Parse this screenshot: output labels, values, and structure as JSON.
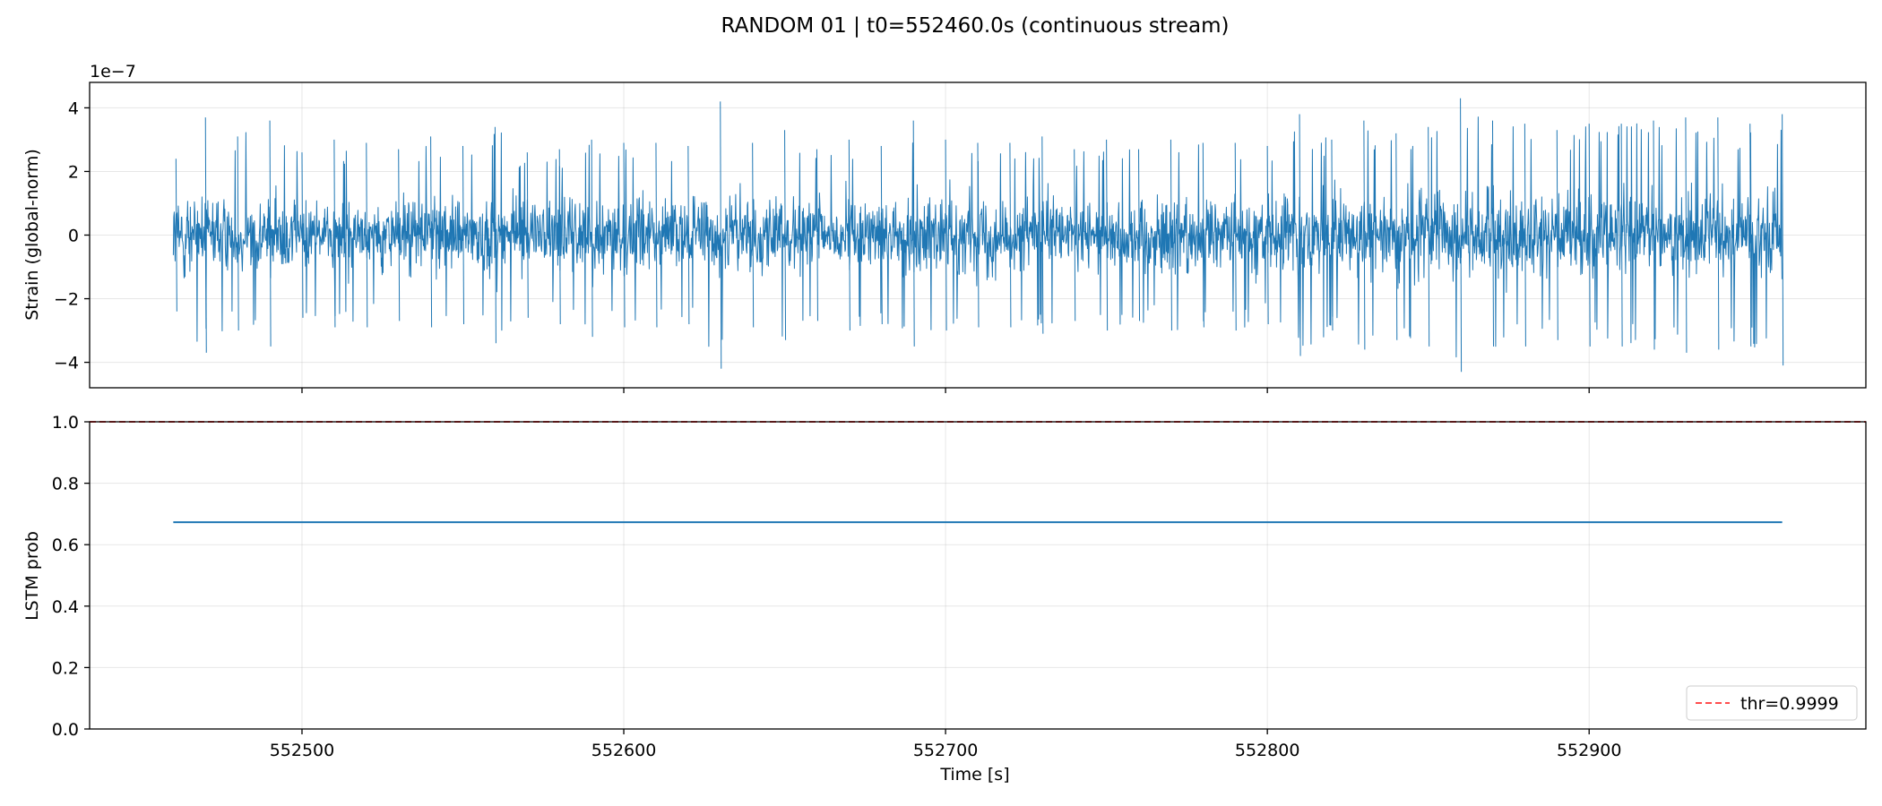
{
  "chart_data": {
    "title": "RANDOM 01 | t0=552460.0s (continuous stream)",
    "xlabel": "Time [s]",
    "shared_x": {
      "range": [
        552434.0,
        552986.0
      ],
      "ticks": [
        552500,
        552600,
        552700,
        552800,
        552900
      ],
      "tick_labels": [
        "552500",
        "552600",
        "552700",
        "552800",
        "552900"
      ]
    },
    "panels": [
      {
        "type": "line",
        "ylabel": "Strain (global-norm)",
        "offset_text": "1e−7",
        "ylim": [
          -4.8,
          4.8
        ],
        "yticks": [
          -4,
          -2,
          0,
          2,
          4
        ],
        "ytick_labels": [
          "−4",
          "−2",
          "0",
          "2",
          "4"
        ],
        "grid": true,
        "series": [
          {
            "color": "#1f77b4",
            "x_range": [
              552460.0,
              552960.0
            ],
            "description_mean": 0,
            "envelope_x": [
              552460,
              552470,
              552480,
              552490,
              552500,
              552510,
              552520,
              552530,
              552540,
              552550,
              552560,
              552570,
              552580,
              552590,
              552600,
              552610,
              552620,
              552630,
              552640,
              552650,
              552660,
              552670,
              552680,
              552690,
              552700,
              552710,
              552720,
              552730,
              552740,
              552750,
              552760,
              552770,
              552780,
              552790,
              552800,
              552810,
              552820,
              552830,
              552840,
              552850,
              552860,
              552870,
              552880,
              552890,
              552900,
              552910,
              552920,
              552930,
              552940,
              552950,
              552960
            ],
            "envelope_max": [
              2.4,
              3.7,
              3.1,
              3.6,
              2.6,
              3.0,
              2.9,
              2.7,
              3.1,
              2.8,
              3.4,
              2.6,
              2.7,
              3.0,
              2.9,
              2.9,
              2.8,
              4.2,
              2.9,
              3.3,
              2.7,
              3.0,
              2.8,
              3.6,
              3.0,
              2.9,
              2.9,
              3.1,
              2.7,
              3.0,
              2.7,
              3.0,
              2.9,
              2.9,
              2.8,
              3.8,
              3.0,
              3.6,
              3.2,
              3.4,
              4.3,
              3.6,
              3.5,
              3.3,
              3.5,
              3.5,
              3.6,
              3.7,
              3.7,
              3.5,
              3.8
            ],
            "envelope_min": [
              -2.4,
              -3.7,
              -3.0,
              -3.5,
              -2.6,
              -2.9,
              -2.9,
              -2.7,
              -2.9,
              -2.8,
              -3.4,
              -2.6,
              -2.8,
              -3.2,
              -2.9,
              -2.9,
              -2.8,
              -4.2,
              -2.9,
              -3.3,
              -2.7,
              -3.0,
              -2.8,
              -3.5,
              -3.0,
              -2.9,
              -2.9,
              -3.1,
              -2.7,
              -3.0,
              -2.7,
              -3.0,
              -2.9,
              -3.0,
              -2.8,
              -3.8,
              -3.0,
              -3.6,
              -3.3,
              -3.5,
              -4.3,
              -3.5,
              -3.5,
              -3.3,
              -3.5,
              -3.5,
              -3.6,
              -3.7,
              -3.6,
              -3.5,
              -4.1
            ],
            "envelope_typical": [
              1.6,
              1.6,
              1.5,
              1.6,
              1.5,
              1.5,
              1.5,
              1.5,
              1.5,
              1.5,
              1.6,
              1.5,
              1.5,
              1.5,
              1.5,
              1.6,
              1.5,
              1.6,
              1.5,
              1.6,
              1.5,
              1.5,
              1.5,
              1.6,
              1.6,
              1.5,
              1.5,
              1.5,
              1.5,
              1.5,
              1.5,
              1.5,
              1.5,
              1.6,
              1.5,
              1.6,
              1.6,
              1.6,
              1.7,
              1.8,
              1.8,
              1.8,
              1.7,
              1.7,
              1.7,
              1.7,
              1.7,
              1.7,
              1.7,
              1.7,
              1.7
            ]
          }
        ]
      },
      {
        "type": "line",
        "ylabel": "LSTM prob",
        "ylim": [
          0.0,
          1.0
        ],
        "yticks": [
          0.0,
          0.2,
          0.4,
          0.6,
          0.8,
          1.0
        ],
        "ytick_labels": [
          "0.0",
          "0.2",
          "0.4",
          "0.6",
          "0.8",
          "1.0"
        ],
        "grid": true,
        "legend_position": "lower-right",
        "series": [
          {
            "color": "#1f77b4",
            "x": [
              552460.0,
              552960.0
            ],
            "y": [
              0.673,
              0.673
            ]
          },
          {
            "name": "thr=0.9999",
            "style": "dashed",
            "color": "#ff4d4d",
            "y_const": 0.9999
          }
        ]
      }
    ]
  }
}
